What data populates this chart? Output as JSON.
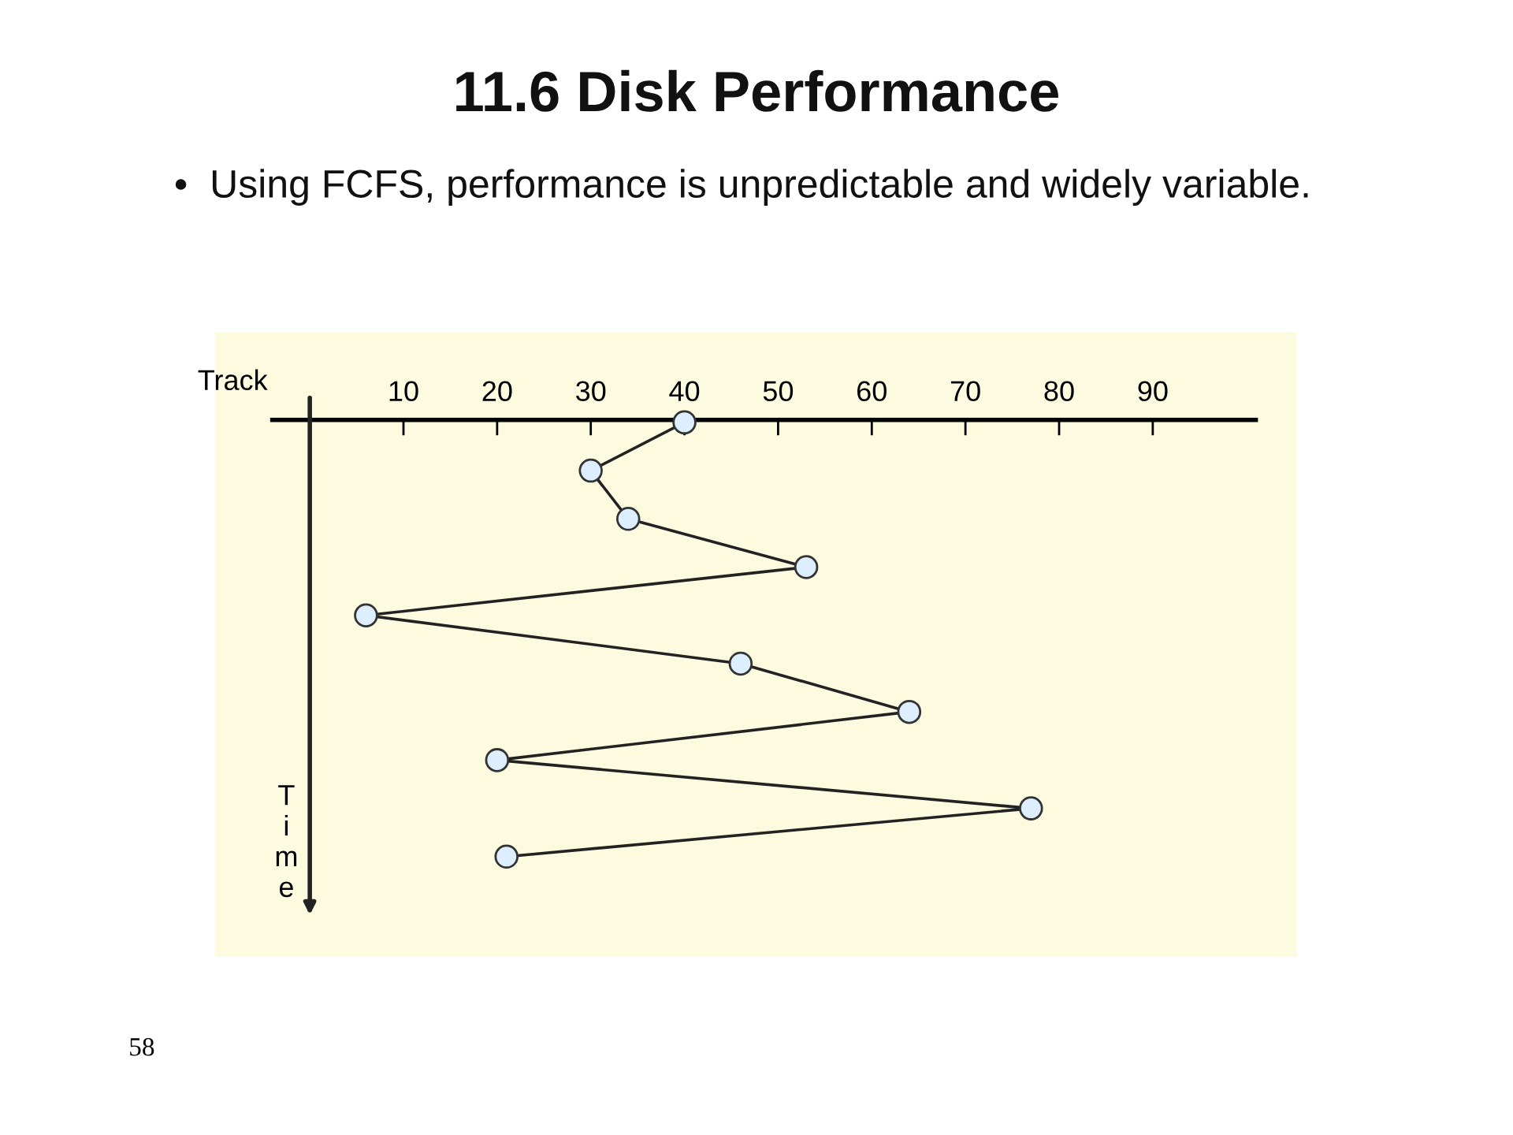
{
  "chart_data": {
    "type": "line",
    "title": "11.6 Disk Performance",
    "subtitle": "•  Using FCFS, performance is unpredictable and widely variable.",
    "xlabel": "Track",
    "ylabel": "Time",
    "orientation": "horizontal",
    "categories": [
      null,
      null,
      null,
      null,
      null,
      null,
      null,
      null,
      null,
      null
    ],
    "series": [
      {
        "color": "#222222",
        "values": [
          40,
          30,
          34,
          53,
          6,
          46,
          64,
          20,
          77,
          21
        ]
      }
    ],
    "xlim": [
      -4,
      101
    ],
    "xticks": [
      10,
      20,
      30,
      40,
      50,
      60,
      70,
      80,
      90
    ],
    "marker": "circle",
    "line_style": "solid",
    "grid": false,
    "legend": false,
    "annotations": [
      "58"
    ]
  }
}
